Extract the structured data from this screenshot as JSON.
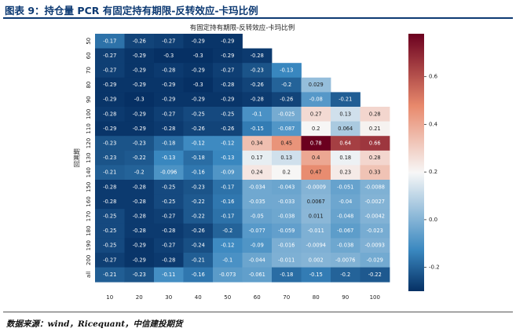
{
  "figure": {
    "label": "图表 9：持仓量 PCR 有固定持有期限-反转效应-卡玛比例",
    "source": "数据来源：wind，Ricequant，中信建投期货"
  },
  "chart_data": {
    "type": "heatmap",
    "title": "有固定持有期限-反转效应-卡玛比例",
    "xlabel": "",
    "ylabel": "回溯期",
    "x_categories": [
      "10",
      "20",
      "30",
      "40",
      "50",
      "60",
      "70",
      "80",
      "90",
      "100"
    ],
    "y_categories": [
      "50",
      "60",
      "70",
      "80",
      "90",
      "100",
      "110",
      "120",
      "130",
      "140",
      "150",
      "160",
      "170",
      "180",
      "190",
      "200",
      "all"
    ],
    "labels": [
      [
        "-0.17",
        "-0.26",
        "-0.27",
        "-0.29",
        "-0.29",
        null,
        null,
        null,
        null,
        null
      ],
      [
        "-0.27",
        "-0.29",
        "-0.3",
        "-0.3",
        "-0.29",
        "-0.28",
        null,
        null,
        null,
        null
      ],
      [
        "-0.27",
        "-0.29",
        "-0.28",
        "-0.29",
        "-0.27",
        "-0.23",
        "-0.13",
        null,
        null,
        null
      ],
      [
        "-0.29",
        "-0.29",
        "-0.29",
        "-0.3",
        "-0.28",
        "-0.26",
        "-0.2",
        "0.029",
        null,
        null
      ],
      [
        "-0.29",
        "-0.3",
        "-0.29",
        "-0.29",
        "-0.29",
        "-0.28",
        "-0.26",
        "-0.08",
        "-0.21",
        null
      ],
      [
        "-0.28",
        "-0.29",
        "-0.27",
        "-0.25",
        "-0.25",
        "-0.1",
        "-0.025",
        "0.27",
        "0.13",
        "0.28"
      ],
      [
        "-0.29",
        "-0.29",
        "-0.28",
        "-0.26",
        "-0.26",
        "-0.15",
        "-0.087",
        "0.2",
        "0.064",
        "0.21"
      ],
      [
        "-0.23",
        "-0.23",
        "-0.18",
        "-0.12",
        "-0.12",
        "0.34",
        "0.45",
        "0.78",
        "0.64",
        "0.66"
      ],
      [
        "-0.23",
        "-0.22",
        "-0.13",
        "-0.18",
        "-0.13",
        "0.17",
        "0.13",
        "0.4",
        "0.18",
        "0.28"
      ],
      [
        "-0.21",
        "-0.2",
        "-0.096",
        "-0.16",
        "-0.09",
        "0.24",
        "0.2",
        "0.47",
        "0.23",
        "0.33"
      ],
      [
        "-0.28",
        "-0.28",
        "-0.25",
        "-0.23",
        "-0.17",
        "-0.034",
        "-0.043",
        "-0.0009",
        "-0.051",
        "-0.0088"
      ],
      [
        "-0.28",
        "-0.28",
        "-0.25",
        "-0.22",
        "-0.16",
        "-0.035",
        "-0.033",
        "0.0067",
        "-0.04",
        "-0.0027"
      ],
      [
        "-0.25",
        "-0.28",
        "-0.27",
        "-0.22",
        "-0.17",
        "-0.05",
        "-0.038",
        "0.011",
        "-0.048",
        "-0.0042"
      ],
      [
        "-0.25",
        "-0.28",
        "-0.28",
        "-0.26",
        "-0.2",
        "-0.077",
        "-0.059",
        "-0.011",
        "-0.067",
        "-0.023"
      ],
      [
        "-0.25",
        "-0.29",
        "-0.27",
        "-0.24",
        "-0.12",
        "-0.09",
        "-0.016",
        "-0.0094",
        "-0.038",
        "-0.0093"
      ],
      [
        "-0.27",
        "-0.29",
        "-0.28",
        "-0.21",
        "-0.1",
        "-0.044",
        "-0.011",
        "0.002",
        "-0.0076",
        "-0.029"
      ],
      [
        "-0.21",
        "-0.23",
        "-0.11",
        "-0.16",
        "-0.073",
        "-0.061",
        "-0.18",
        "-0.15",
        "-0.2",
        "-0.22"
      ]
    ],
    "color_range": [
      -0.3,
      0.78
    ],
    "colorbar_ticks": [
      "-0.2",
      "0.0",
      "0.2",
      "0.4",
      "0.6"
    ],
    "colormap": {
      "low": "#063064",
      "mid_low": "#3a88c0",
      "mid": "#f7f7f7",
      "mid_high": "#e8896c",
      "high": "#6b001f"
    }
  }
}
